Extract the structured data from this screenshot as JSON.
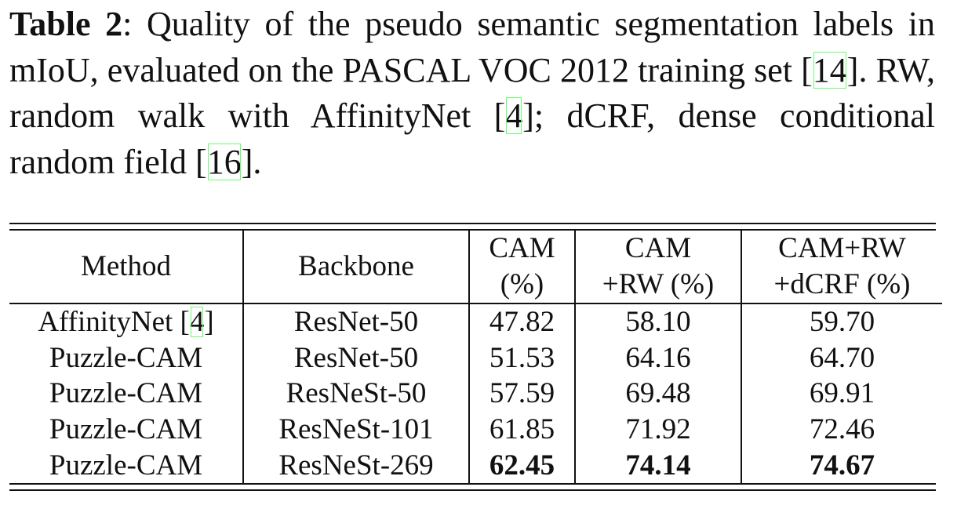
{
  "caption": {
    "label": "Table 2",
    "text_1": ": Quality of the pseudo semantic segmentation labels in mIoU, evaluated on the PASCAL VOC 2012 training set [",
    "cite_1": "14",
    "text_2": "].  RW, random walk with AffinityNet [",
    "cite_2": "4",
    "text_3": "]; dCRF, dense conditional random field [",
    "cite_3": "16",
    "text_4": "]."
  },
  "table": {
    "headers": {
      "method": "Method",
      "backbone": "Backbone",
      "cam_line1": "CAM",
      "cam_line2": "(%)",
      "camrw_line1": "CAM",
      "camrw_line2": "+RW (%)",
      "camrwdcrf_line1": "CAM+RW",
      "camrwdcrf_line2": "+dCRF (%)"
    },
    "rows": [
      {
        "method": "AffinityNet [",
        "method_cite": "4",
        "method_suffix": "]",
        "backbone": "ResNet-50",
        "cam": "47.82",
        "cam_rw": "58.10",
        "cam_rw_dcrf": "59.70"
      },
      {
        "method": "Puzzle-CAM",
        "backbone": "ResNet-50",
        "cam": "51.53",
        "cam_rw": "64.16",
        "cam_rw_dcrf": "64.70"
      },
      {
        "method": "Puzzle-CAM",
        "backbone": "ResNeSt-50",
        "cam": "57.59",
        "cam_rw": "69.48",
        "cam_rw_dcrf": "69.91"
      },
      {
        "method": "Puzzle-CAM",
        "backbone": "ResNeSt-101",
        "cam": "61.85",
        "cam_rw": "71.92",
        "cam_rw_dcrf": "72.46"
      },
      {
        "method": "Puzzle-CAM",
        "backbone": "ResNeSt-269",
        "cam": "62.45",
        "cam_rw": "74.14",
        "cam_rw_dcrf": "74.67"
      }
    ]
  }
}
